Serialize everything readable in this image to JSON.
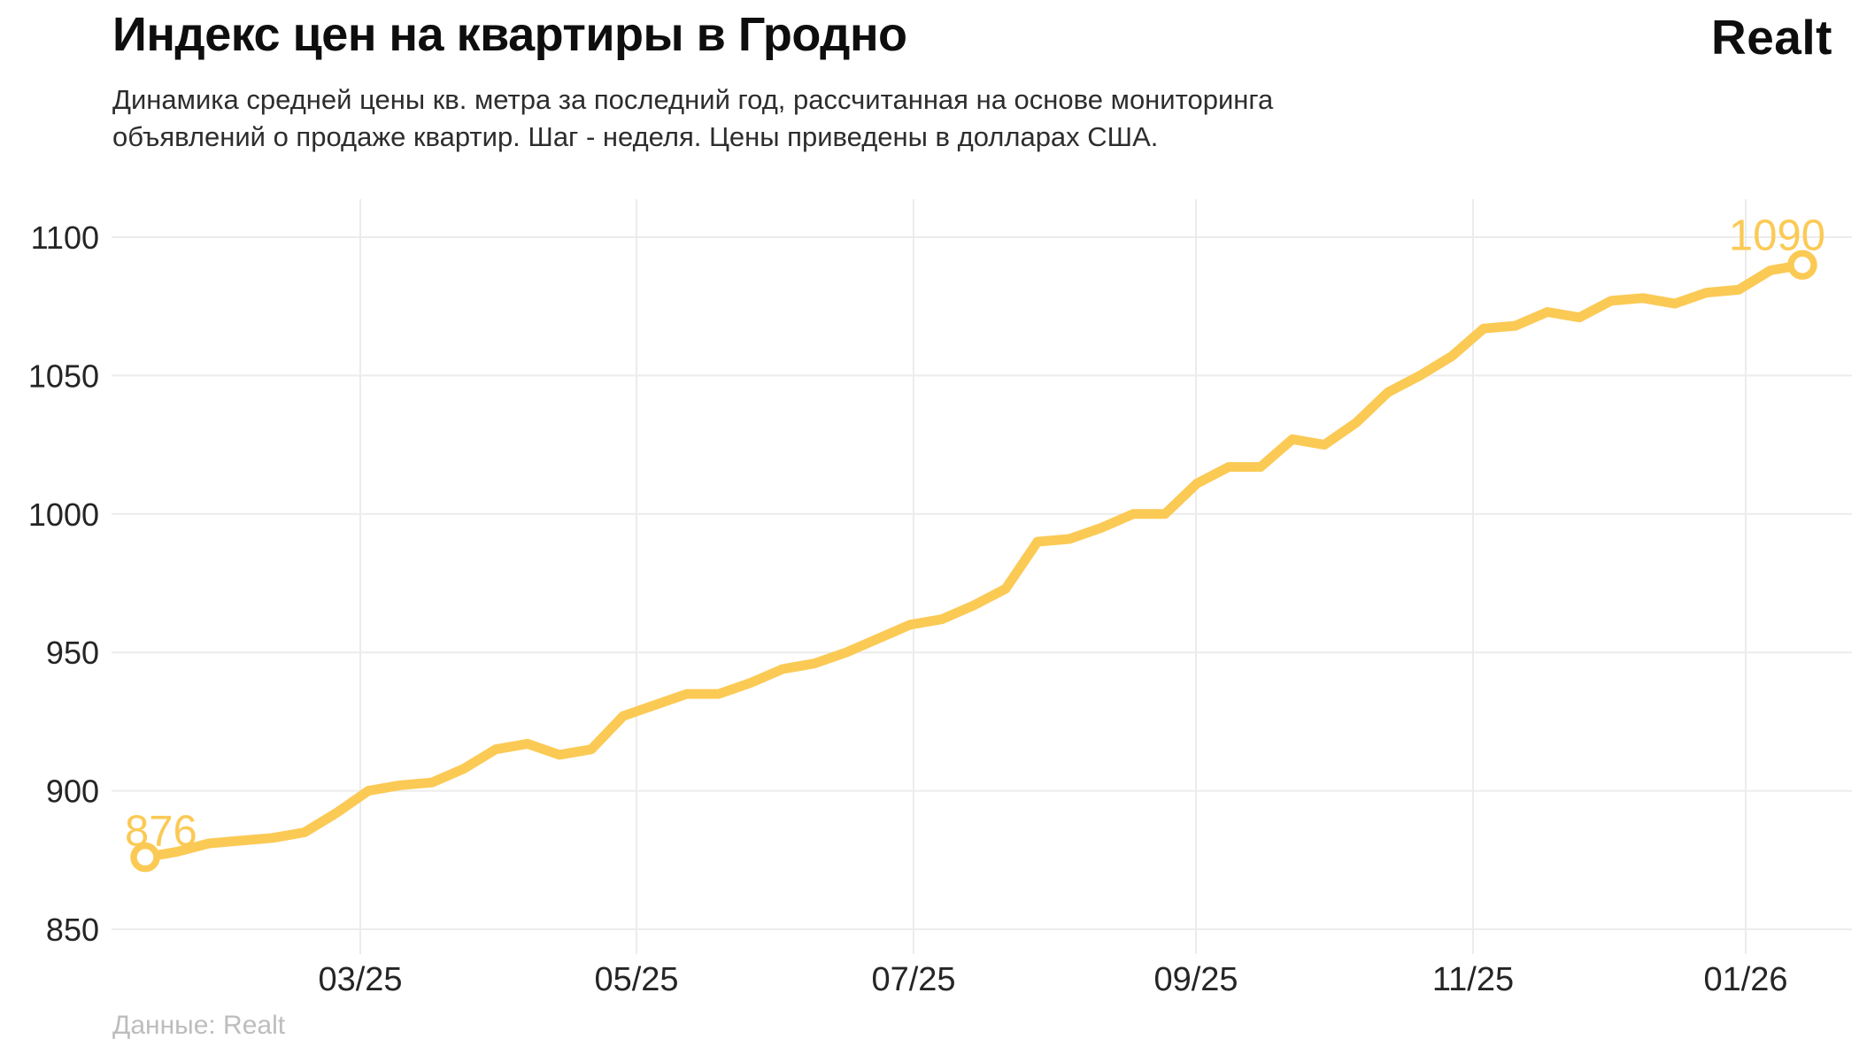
{
  "header": {
    "title": "Индекс цен на квартиры в Гродно",
    "subtitle_line1": "Динамика средней цены кв. метра за последний год, рассчитанная на основе мониторинга",
    "subtitle_line2": "объявлений о продаже квартир. Шаг - неделя. Цены приведены в долларах США.",
    "logo": "Realt"
  },
  "footer": {
    "source": "Данные: Realt"
  },
  "colors": {
    "line": "#fbca55",
    "grid": "#ececec",
    "axis_text": "#252525",
    "annotation": "#fbca55",
    "marker_fill": "#ffffff"
  },
  "chart_data": {
    "type": "line",
    "title": "Индекс цен на квартиры в Гродно",
    "xlabel": "",
    "ylabel": "",
    "grid": true,
    "legend": false,
    "ylim": [
      850,
      1100
    ],
    "yticks": [
      1100,
      1050,
      1000,
      950,
      900,
      850
    ],
    "xticklabels": [
      "03/25",
      "05/25",
      "07/25",
      "09/25",
      "11/25",
      "01/26"
    ],
    "x_step_note": "weekly points, mid-Jan 2025 to mid-Jan 2026",
    "series": [
      {
        "name": "Средняя цена кв. метра, USD",
        "values": [
          876,
          878,
          881,
          882,
          883,
          885,
          892,
          900,
          902,
          903,
          908,
          915,
          917,
          913,
          915,
          927,
          931,
          935,
          935,
          939,
          944,
          946,
          950,
          955,
          960,
          962,
          967,
          973,
          990,
          991,
          995,
          1000,
          1000,
          1011,
          1017,
          1017,
          1027,
          1025,
          1033,
          1044,
          1050,
          1057,
          1067,
          1068,
          1073,
          1071,
          1077,
          1078,
          1076,
          1080,
          1081,
          1088,
          1090
        ]
      }
    ],
    "annotations": {
      "start_label": "876",
      "end_label": "1090"
    }
  }
}
